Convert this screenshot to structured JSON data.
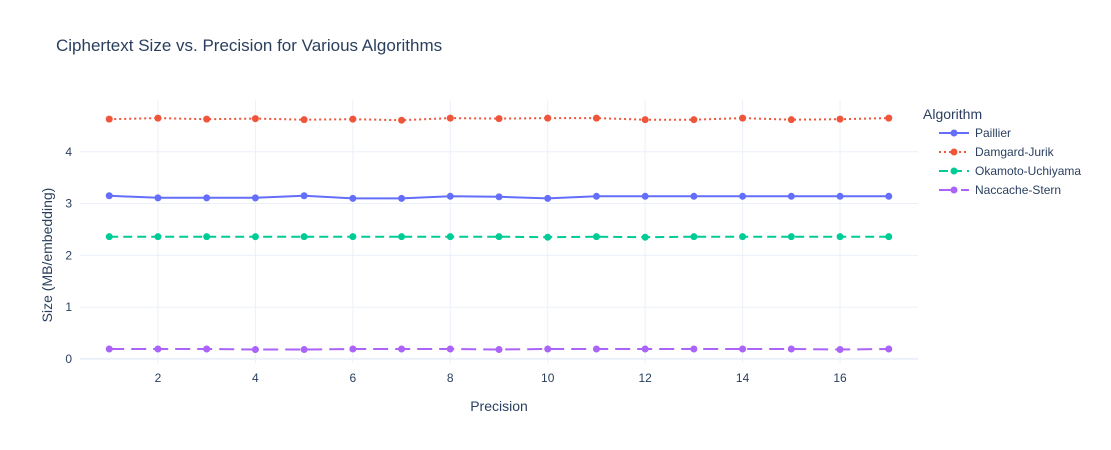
{
  "chart_data": {
    "type": "line",
    "title": "Ciphertext Size vs. Precision for Various Algorithms",
    "xlabel": "Precision",
    "ylabel": "Size (MB/embedding)",
    "xlim": [
      0.4,
      17.6
    ],
    "ylim": [
      -0.08,
      5.0
    ],
    "x_ticks": [
      2,
      4,
      6,
      8,
      10,
      12,
      14,
      16
    ],
    "y_ticks": [
      0,
      1,
      2,
      3,
      4
    ],
    "grid": true,
    "legend_title": "Algorithm",
    "legend_position": "right",
    "x": [
      1,
      2,
      3,
      4,
      5,
      6,
      7,
      8,
      9,
      10,
      11,
      12,
      13,
      14,
      15,
      16,
      17
    ],
    "series": [
      {
        "name": "Paillier",
        "color": "#636efa",
        "dash": "solid",
        "values": [
          3.15,
          3.11,
          3.11,
          3.11,
          3.15,
          3.1,
          3.1,
          3.14,
          3.13,
          3.1,
          3.14,
          3.14,
          3.14,
          3.14,
          3.14,
          3.14,
          3.14
        ]
      },
      {
        "name": "Damgard-Jurik",
        "color": "#ef553b",
        "dash": "dot",
        "values": [
          4.63,
          4.65,
          4.63,
          4.64,
          4.62,
          4.63,
          4.61,
          4.65,
          4.64,
          4.65,
          4.65,
          4.62,
          4.62,
          4.65,
          4.62,
          4.63,
          4.65
        ]
      },
      {
        "name": "Okamoto-Uchiyama",
        "color": "#00cc96",
        "dash": "dash",
        "values": [
          2.36,
          2.36,
          2.36,
          2.36,
          2.36,
          2.36,
          2.36,
          2.36,
          2.36,
          2.35,
          2.36,
          2.35,
          2.36,
          2.36,
          2.36,
          2.36,
          2.36
        ]
      },
      {
        "name": "Naccache-Stern",
        "color": "#ab63fa",
        "dash": "longdash",
        "values": [
          0.19,
          0.19,
          0.19,
          0.18,
          0.18,
          0.19,
          0.19,
          0.19,
          0.18,
          0.19,
          0.19,
          0.19,
          0.19,
          0.19,
          0.19,
          0.18,
          0.19
        ]
      }
    ]
  }
}
